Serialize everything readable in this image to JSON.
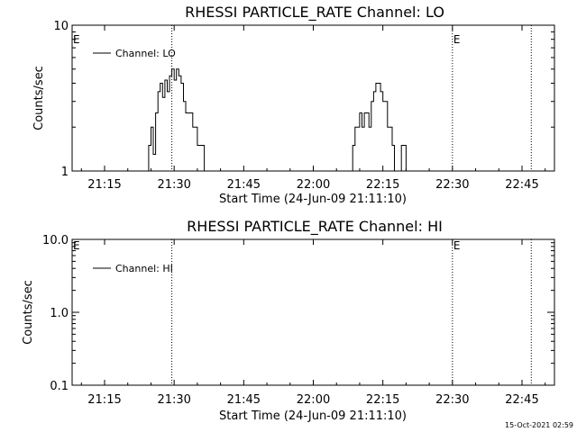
{
  "chart_data": [
    {
      "type": "line",
      "title": "RHESSI PARTICLE_RATE Channel: LO",
      "xlabel": "Start Time (24-Jun-09 21:11:10)",
      "ylabel": "Counts/sec",
      "y_scale": "log",
      "ylim": [
        1,
        10
      ],
      "ytick_labels": [
        "1",
        "10"
      ],
      "xlim": [
        "21:08",
        "22:52"
      ],
      "xtick_labels": [
        "21:15",
        "21:30",
        "21:45",
        "22:00",
        "22:15",
        "22:30",
        "22:45"
      ],
      "legend": {
        "placement": "top-left",
        "entries": [
          "Channel: LO"
        ]
      },
      "event_markers": [
        {
          "time": "21:29:30",
          "label": ""
        },
        {
          "time": "22:30:00",
          "label": "E"
        },
        {
          "time": "22:47:00",
          "label": ""
        }
      ],
      "edge_label": "E",
      "series": [
        {
          "name": "Channel: LO",
          "x": [
            "21:24",
            "21:24:30",
            "21:25",
            "21:25:30",
            "21:26",
            "21:26:30",
            "21:27",
            "21:27:30",
            "21:28",
            "21:28:30",
            "21:29",
            "21:29:30",
            "21:30",
            "21:30:30",
            "21:31",
            "21:31:30",
            "21:32",
            "21:32:30",
            "21:33",
            "21:33:30",
            "21:34",
            "21:34:30",
            "21:35",
            "21:35:30",
            "21:36",
            "21:36:30",
            "21:37",
            "21:37:30",
            "22:08",
            "22:08:30",
            "22:09",
            "22:09:30",
            "22:10",
            "22:10:30",
            "22:11",
            "22:11:30",
            "22:12",
            "22:12:30",
            "22:13",
            "22:13:30",
            "22:14",
            "22:14:30",
            "22:15",
            "22:15:30",
            "22:16",
            "22:16:30",
            "22:17",
            "22:17:30",
            "22:18",
            "22:18:30",
            "22:19",
            "22:19:30",
            "22:20",
            "22:20:30"
          ],
          "y": [
            1,
            1.5,
            2,
            1.3,
            2.5,
            3.5,
            4,
            3.2,
            4.2,
            3.5,
            4.5,
            5,
            4.2,
            5,
            4.5,
            4,
            3,
            2.5,
            2.5,
            2.5,
            2,
            2,
            1.5,
            1.5,
            1.5,
            1,
            1,
            1,
            1,
            1.5,
            2,
            2,
            2.5,
            2,
            2.5,
            2.5,
            2,
            3,
            3.5,
            4,
            4,
            3.5,
            3,
            3,
            2,
            2,
            1.5,
            1,
            1,
            1,
            1.5,
            1.5,
            1,
            1
          ]
        }
      ]
    },
    {
      "type": "line",
      "title": "RHESSI PARTICLE_RATE Channel: HI",
      "xlabel": "Start Time (24-Jun-09 21:11:10)",
      "ylabel": "Counts/sec",
      "y_scale": "log",
      "ylim": [
        0.1,
        10
      ],
      "ytick_labels": [
        "0.1",
        "1.0",
        "10.0"
      ],
      "xlim": [
        "21:08",
        "22:52"
      ],
      "xtick_labels": [
        "21:15",
        "21:30",
        "21:45",
        "22:00",
        "22:15",
        "22:30",
        "22:45"
      ],
      "legend": {
        "placement": "top-left",
        "entries": [
          "Channel: HI"
        ]
      },
      "event_markers": [
        {
          "time": "21:29:30",
          "label": ""
        },
        {
          "time": "22:30:00",
          "label": "E"
        },
        {
          "time": "22:47:00",
          "label": ""
        }
      ],
      "edge_label": "E",
      "series": [
        {
          "name": "Channel: HI",
          "x": [],
          "y": []
        }
      ]
    }
  ],
  "footer": {
    "timestamp": "15-Oct-2021 02:59"
  }
}
